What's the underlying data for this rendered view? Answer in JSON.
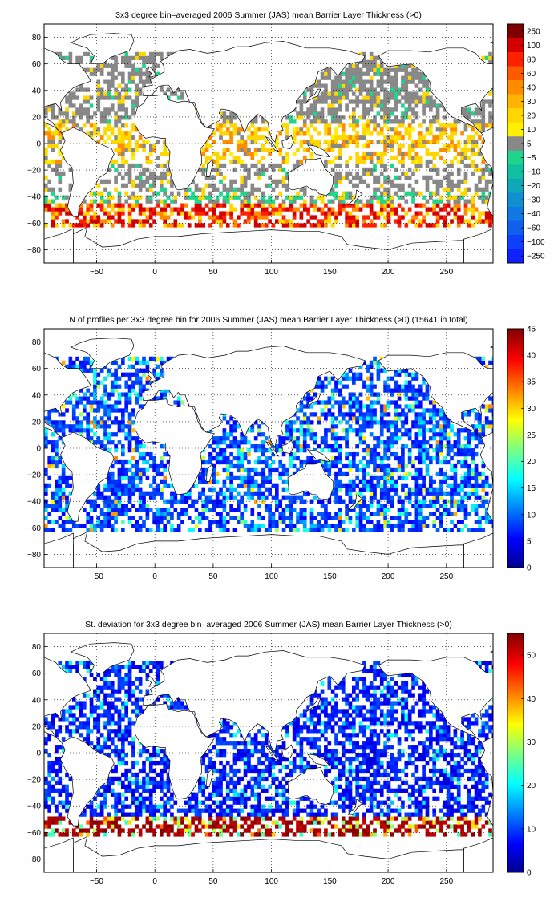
{
  "chart_data": [
    {
      "type": "heatmap",
      "title": "3x3 degree bin–averaged 2006 Summer (JAS) mean Barrier Layer Thickness (>0)",
      "xlabel": "",
      "ylabel": "",
      "x_ticks": [
        "−50",
        "0",
        "50",
        "100",
        "150",
        "200",
        "250"
      ],
      "y_ticks": [
        "80",
        "60",
        "40",
        "20",
        "0",
        "−20",
        "−40",
        "−60",
        "−80"
      ],
      "xlim": [
        -95,
        290
      ],
      "ylim": [
        -90,
        90
      ],
      "grid": true,
      "colorbar": {
        "type": "discrete",
        "labels": [
          "250",
          "100",
          "80",
          "60",
          "40",
          "30",
          "20",
          "10",
          "5",
          "−5",
          "−10",
          "−20",
          "−30",
          "−40",
          "−60",
          "−100",
          "−250"
        ],
        "colors": [
          "#800000",
          "#d40000",
          "#ff2000",
          "#ff5a00",
          "#ff8c00",
          "#ffb400",
          "#ffd700",
          "#fff000",
          "#888888",
          "#20d48c",
          "#10c0a0",
          "#10a8b8",
          "#1090d0",
          "#1078e0",
          "#1060f0",
          "#1040ff",
          "#1020ff"
        ]
      }
    },
    {
      "type": "heatmap",
      "title": "N of profiles per 3x3 degree bin for 2006 Summer (JAS) mean Barrier Layer Thickness (>0) (15641 in total)",
      "xlabel": "",
      "ylabel": "",
      "x_ticks": [
        "−50",
        "0",
        "50",
        "100",
        "150",
        "200",
        "250"
      ],
      "y_ticks": [
        "80",
        "60",
        "40",
        "20",
        "0",
        "−20",
        "−40",
        "−60",
        "−80"
      ],
      "xlim": [
        -95,
        290
      ],
      "ylim": [
        -90,
        90
      ],
      "grid": true,
      "colorbar": {
        "type": "continuous",
        "ticks": [
          "45",
          "40",
          "35",
          "30",
          "25",
          "20",
          "15",
          "10",
          "5",
          "0"
        ],
        "range": [
          0,
          45
        ]
      }
    },
    {
      "type": "heatmap",
      "title": "St. deviation for 3x3 degree bin–averaged 2006 Summer (JAS) mean Barrier Layer Thickness (>0)",
      "xlabel": "",
      "ylabel": "",
      "x_ticks": [
        "−50",
        "0",
        "50",
        "100",
        "150",
        "200",
        "250"
      ],
      "y_ticks": [
        "80",
        "60",
        "40",
        "20",
        "0",
        "−20",
        "−40",
        "−60",
        "−80"
      ],
      "xlim": [
        -95,
        290
      ],
      "ylim": [
        -90,
        90
      ],
      "grid": true,
      "colorbar": {
        "type": "continuous",
        "ticks": [
          "50",
          "40",
          "30",
          "20",
          "10",
          "0"
        ],
        "range": [
          0,
          55
        ]
      }
    }
  ]
}
